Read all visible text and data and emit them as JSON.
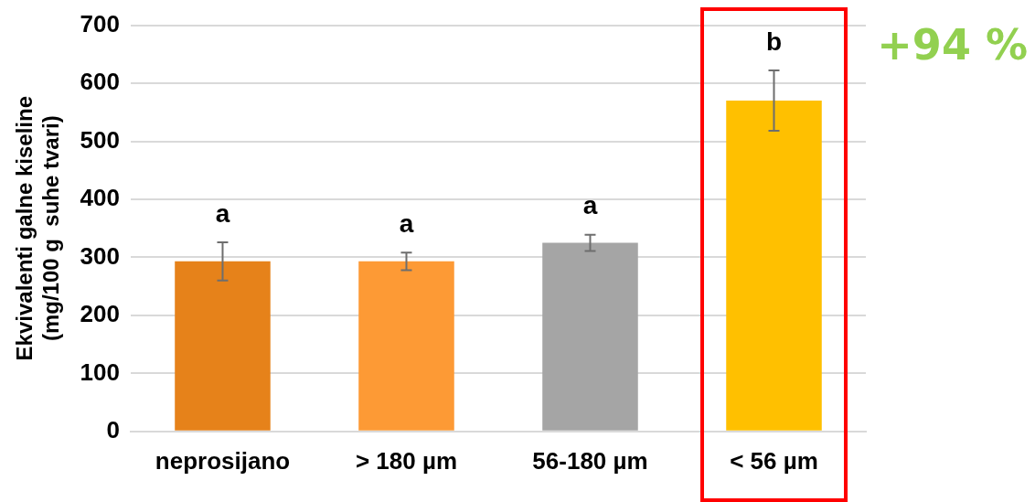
{
  "chart_data": {
    "type": "bar",
    "ylabel": "Ekvivalenti galne kiseline\n(mg/100 g  suhe tvari)",
    "categories": [
      "neprosijano",
      "> 180 µm",
      "56-180 µm",
      "< 56 µm"
    ],
    "values": [
      293,
      293,
      325,
      570
    ],
    "colors": [
      "#e6821a",
      "#fd9a35",
      "#a5a5a5",
      "#ffc000"
    ],
    "errors": [
      33,
      15,
      14,
      52
    ],
    "ylim": [
      0,
      700
    ],
    "yticks": [
      0,
      100,
      200,
      300,
      400,
      500,
      600,
      700
    ],
    "grid": "y",
    "legend": false,
    "annotations": [
      "a",
      "a",
      "a",
      "b",
      "+94 %"
    ]
  }
}
